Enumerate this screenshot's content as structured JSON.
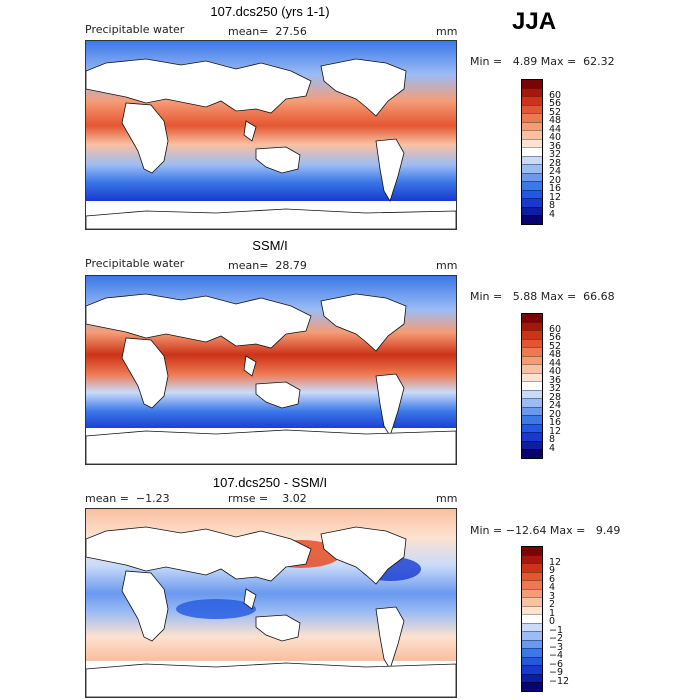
{
  "season": "JJA",
  "palette_abs": [
    "#08036e",
    "#0d1ea3",
    "#1739cf",
    "#2259e0",
    "#3b78e8",
    "#6a99ef",
    "#9cbcf4",
    "#c9dbf9",
    "#ffffff",
    "#fde2cf",
    "#f9c0a2",
    "#f59c76",
    "#ee7850",
    "#e45631",
    "#cc3318",
    "#a5170b",
    "#7a0404"
  ],
  "palette_diff": [
    "#08036e",
    "#0d1ea3",
    "#1739cf",
    "#2259e0",
    "#3b78e8",
    "#6a99ef",
    "#9cbcf4",
    "#c9dbf9",
    "#ffffff",
    "#fde2cf",
    "#f9c0a2",
    "#f59c76",
    "#ee7850",
    "#e45631",
    "#cc3318",
    "#a5170b",
    "#7a0404"
  ],
  "panels": [
    {
      "title": "107.dcs250 (yrs 1-1)",
      "variable": "Precipitable water",
      "stat_text": "mean=  27.56",
      "unit": "mm",
      "minmax": "Min =   4.89 Max =  62.32",
      "colorbar_ticks": [
        "4",
        "8",
        "12",
        "16",
        "20",
        "24",
        "28",
        "32",
        "36",
        "40",
        "44",
        "48",
        "52",
        "56",
        "60"
      ]
    },
    {
      "title": "SSM/I",
      "variable": "Precipitable water",
      "stat_text": "mean=  28.79",
      "unit": "mm",
      "minmax": "Min =   5.88 Max =  66.68",
      "colorbar_ticks": [
        "4",
        "8",
        "12",
        "16",
        "20",
        "24",
        "28",
        "32",
        "36",
        "40",
        "44",
        "48",
        "52",
        "56",
        "60"
      ]
    },
    {
      "title": "107.dcs250 - SSM/I",
      "variable": "mean =  −1.23",
      "stat_text": "rmse =    3.02",
      "unit": "mm",
      "minmax": "Min = −12.64 Max =   9.49",
      "colorbar_ticks": [
        "−12",
        "−9",
        "−6",
        "−4",
        "−3",
        "−2",
        "−1",
        "0",
        "1",
        "2",
        "3",
        "4",
        "6",
        "9",
        "12"
      ]
    }
  ]
}
